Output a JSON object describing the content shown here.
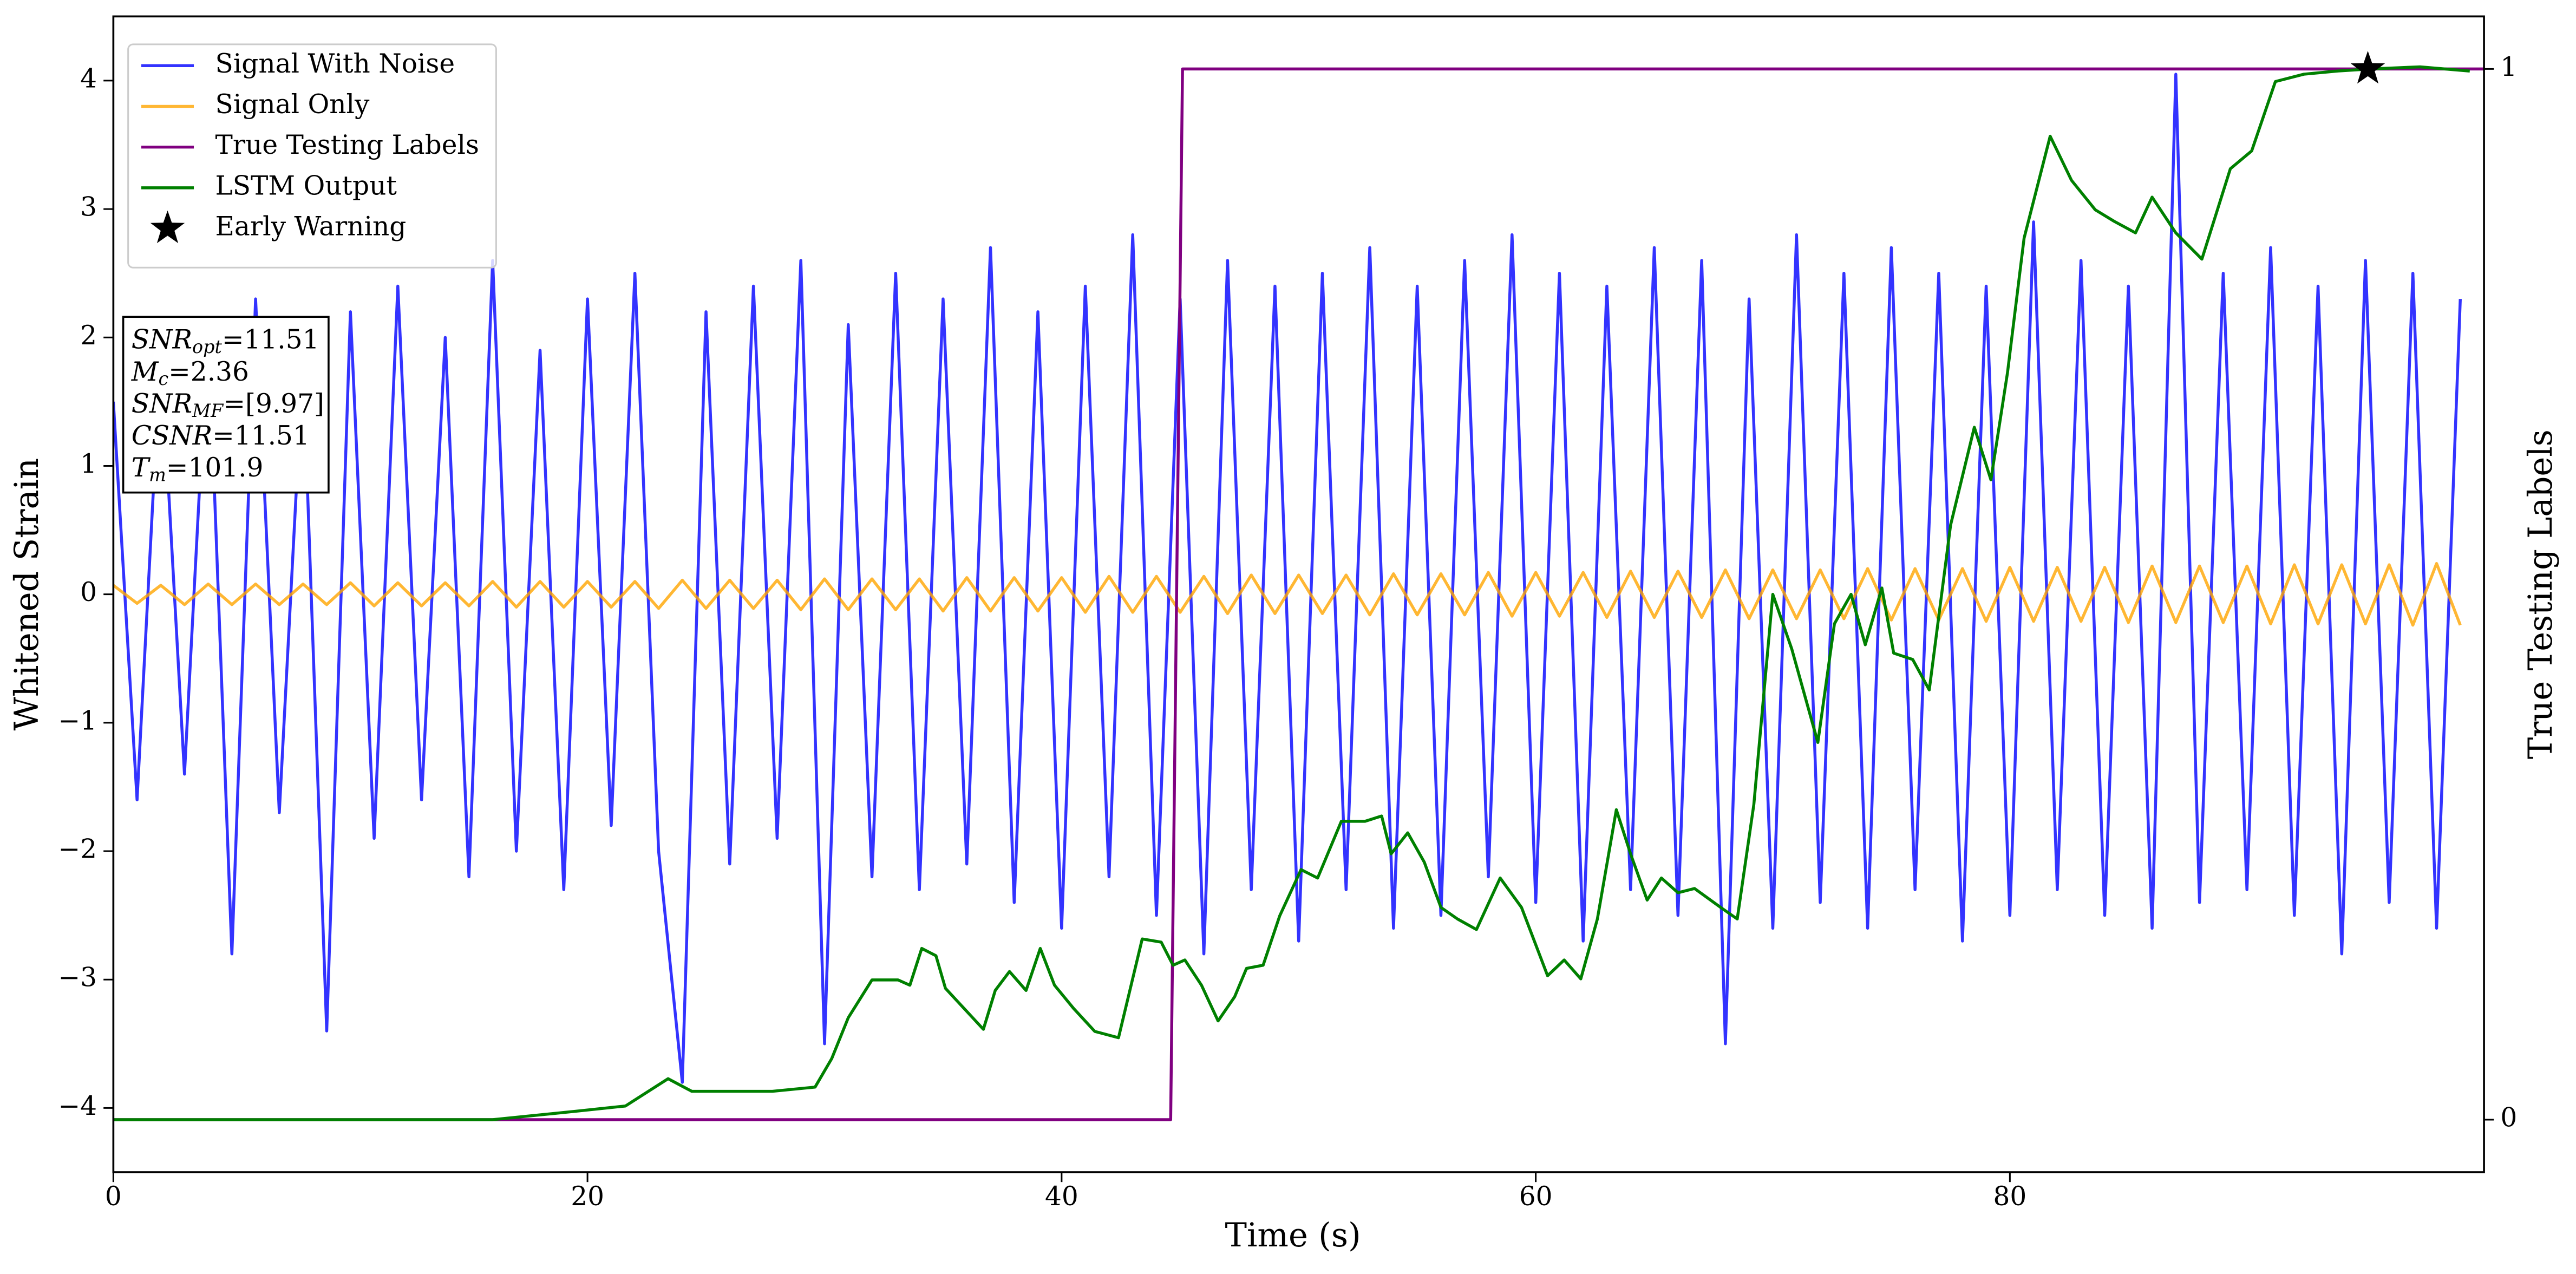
{
  "chart_data": {
    "type": "line",
    "x_label": "Time (s)",
    "y_label": "Whitened Strain",
    "y2_label": "True Testing Labels",
    "xlim": [
      0,
      100
    ],
    "xticks": [
      0,
      20,
      40,
      60,
      80
    ],
    "ylim": [
      -4.5,
      4.5
    ],
    "yticks": [
      {
        "value": -4,
        "label": "−4"
      },
      {
        "value": -3,
        "label": "−3"
      },
      {
        "value": -2,
        "label": "−2"
      },
      {
        "value": -1,
        "label": "−1"
      },
      0,
      1,
      2,
      3,
      4
    ],
    "y2lim": [
      -0.05,
      1.05
    ],
    "y2ticks": [
      0,
      1
    ],
    "legend": "upper left",
    "series": [
      {
        "name": "Signal With Noise",
        "type": "line",
        "color": "#0000ff",
        "alpha": 0.8,
        "x": [
          0,
          1,
          2,
          3,
          4,
          5,
          6,
          7,
          8,
          9,
          10,
          11,
          12,
          13,
          14,
          15,
          16,
          17,
          18,
          19,
          20,
          21,
          22,
          23,
          24,
          25,
          26,
          27,
          28,
          29,
          30,
          31,
          32,
          33,
          34,
          35,
          36,
          37,
          38,
          39,
          40,
          41,
          42,
          43,
          44,
          45,
          46,
          47,
          48,
          49,
          50,
          51,
          52,
          53,
          54,
          55,
          56,
          57,
          58,
          59,
          60,
          61,
          62,
          63,
          64,
          65,
          66,
          67,
          68,
          69,
          70,
          71,
          72,
          73,
          74,
          75,
          76,
          77,
          78,
          79,
          80,
          81,
          82,
          83,
          84,
          85,
          86,
          87,
          88,
          89,
          90,
          91,
          92,
          93,
          94,
          95,
          96,
          97,
          98,
          99
        ],
        "values": [
          1.5,
          -1.6,
          1.9,
          -1.4,
          2.1,
          -2.8,
          2.3,
          -1.7,
          1.8,
          -3.4,
          2.2,
          -1.9,
          2.4,
          -1.6,
          2.0,
          -2.2,
          2.6,
          -2.0,
          1.9,
          -2.3,
          2.3,
          -1.8,
          2.5,
          -2.0,
          -3.8,
          2.2,
          -2.1,
          2.4,
          -1.9,
          2.6,
          -3.5,
          2.1,
          -2.2,
          2.5,
          -2.3,
          2.3,
          -2.1,
          2.7,
          -2.4,
          2.2,
          -2.6,
          2.4,
          -2.2,
          2.8,
          -2.5,
          2.3,
          -2.8,
          2.6,
          -2.3,
          2.4,
          -2.7,
          2.5,
          -2.3,
          2.7,
          -2.6,
          2.4,
          -2.5,
          2.6,
          -2.2,
          2.8,
          -2.4,
          2.5,
          -2.7,
          2.4,
          -2.3,
          2.7,
          -2.5,
          2.6,
          -3.5,
          2.3,
          -2.6,
          2.8,
          -2.4,
          2.5,
          -2.6,
          2.7,
          -2.3,
          2.5,
          -2.7,
          2.4,
          -2.5,
          2.9,
          -2.3,
          2.6,
          -2.5,
          2.4,
          -2.6,
          4.05,
          -2.4,
          2.5,
          -2.3,
          2.7,
          -2.5,
          2.4,
          -2.8,
          2.6,
          -2.4,
          2.5,
          -2.6,
          2.3
        ]
      },
      {
        "name": "Signal Only",
        "type": "line",
        "color": "#ffa500",
        "alpha": 0.8,
        "x": [
          0,
          1,
          2,
          3,
          4,
          5,
          6,
          7,
          8,
          9,
          10,
          11,
          12,
          13,
          14,
          15,
          16,
          17,
          18,
          19,
          20,
          21,
          22,
          23,
          24,
          25,
          26,
          27,
          28,
          29,
          30,
          31,
          32,
          33,
          34,
          35,
          36,
          37,
          38,
          39,
          40,
          41,
          42,
          43,
          44,
          45,
          46,
          47,
          48,
          49,
          50,
          51,
          52,
          53,
          54,
          55,
          56,
          57,
          58,
          59,
          60,
          61,
          62,
          63,
          64,
          65,
          66,
          67,
          68,
          69,
          70,
          71,
          72,
          73,
          74,
          75,
          76,
          77,
          78,
          79,
          80,
          81,
          82,
          83,
          84,
          85,
          86,
          87,
          88,
          89,
          90,
          91,
          92,
          93,
          94,
          95,
          96,
          97,
          98,
          99
        ],
        "values": [
          0.07,
          -0.07,
          0.07,
          -0.08,
          0.08,
          -0.08,
          0.08,
          -0.08,
          0.08,
          -0.08,
          0.09,
          -0.09,
          0.09,
          -0.09,
          0.09,
          -0.09,
          0.1,
          -0.1,
          0.1,
          -0.1,
          0.1,
          -0.1,
          0.1,
          -0.11,
          0.11,
          -0.11,
          0.11,
          -0.11,
          0.11,
          -0.12,
          0.12,
          -0.12,
          0.12,
          -0.12,
          0.12,
          -0.13,
          0.13,
          -0.13,
          0.13,
          -0.13,
          0.13,
          -0.14,
          0.14,
          -0.14,
          0.14,
          -0.14,
          0.14,
          -0.15,
          0.15,
          -0.15,
          0.15,
          -0.15,
          0.15,
          -0.16,
          0.16,
          -0.16,
          0.16,
          -0.16,
          0.17,
          -0.17,
          0.17,
          -0.17,
          0.17,
          -0.18,
          0.18,
          -0.18,
          0.18,
          -0.18,
          0.19,
          -0.19,
          0.19,
          -0.19,
          0.19,
          -0.19,
          0.2,
          -0.2,
          0.2,
          -0.2,
          0.2,
          -0.21,
          0.21,
          -0.21,
          0.21,
          -0.21,
          0.21,
          -0.22,
          0.22,
          -0.22,
          0.22,
          -0.22,
          0.22,
          -0.23,
          0.23,
          -0.23,
          0.23,
          -0.23,
          0.23,
          -0.24,
          0.24,
          -0.24
        ]
      },
      {
        "name": "True Testing Labels",
        "type": "line",
        "color": "#800080",
        "axis": "y2",
        "x": [
          0,
          44.6,
          45.1,
          100
        ],
        "values": [
          0,
          0,
          1,
          1
        ]
      },
      {
        "name": "LSTM Output",
        "type": "line",
        "color": "#008000",
        "axis": "y2",
        "x": [
          0,
          16.0,
          19.5,
          21.6,
          23.4,
          24.4,
          27.8,
          29.6,
          30.3,
          31.0,
          32.0,
          33.1,
          33.6,
          34.1,
          34.7,
          35.1,
          36.7,
          37.2,
          37.8,
          38.5,
          39.1,
          39.7,
          40.5,
          41.4,
          42.4,
          43.4,
          44.2,
          44.7,
          45.2,
          45.9,
          46.6,
          47.3,
          47.8,
          48.5,
          49.2,
          50.1,
          50.8,
          51.8,
          52.8,
          53.5,
          53.9,
          54.6,
          55.3,
          56.0,
          56.7,
          57.5,
          58.5,
          59.4,
          60.5,
          61.2,
          61.9,
          62.6,
          63.4,
          64.0,
          64.7,
          65.3,
          66.0,
          66.7,
          67.8,
          68.5,
          69.2,
          70.0,
          70.8,
          71.9,
          72.6,
          73.3,
          73.9,
          74.6,
          75.1,
          75.9,
          76.6,
          77.5,
          78.5,
          79.2,
          79.9,
          80.6,
          81.7,
          82.6,
          83.6,
          84.4,
          85.3,
          86.0,
          87.0,
          88.1,
          89.3,
          90.2,
          91.2,
          92.4,
          93.8,
          95.2,
          97.3,
          99.4
        ],
        "values": [
          0,
          0,
          0.008,
          0.013,
          0.039,
          0.027,
          0.027,
          0.031,
          0.058,
          0.097,
          0.133,
          0.133,
          0.128,
          0.163,
          0.156,
          0.125,
          0.086,
          0.123,
          0.141,
          0.123,
          0.163,
          0.128,
          0.106,
          0.084,
          0.078,
          0.172,
          0.169,
          0.147,
          0.152,
          0.128,
          0.094,
          0.117,
          0.144,
          0.147,
          0.194,
          0.238,
          0.23,
          0.284,
          0.284,
          0.289,
          0.253,
          0.273,
          0.245,
          0.202,
          0.191,
          0.181,
          0.23,
          0.202,
          0.137,
          0.152,
          0.134,
          0.191,
          0.295,
          0.253,
          0.209,
          0.23,
          0.216,
          0.22,
          0.202,
          0.191,
          0.3,
          0.5,
          0.448,
          0.359,
          0.472,
          0.5,
          0.452,
          0.506,
          0.444,
          0.438,
          0.409,
          0.566,
          0.659,
          0.609,
          0.711,
          0.839,
          0.936,
          0.894,
          0.866,
          0.855,
          0.844,
          0.878,
          0.844,
          0.819,
          0.905,
          0.922,
          0.988,
          0.995,
          0.998,
          1.0,
          1.002,
          0.998
        ]
      },
      {
        "name": "Early Warning",
        "type": "scatter",
        "marker": "star",
        "color": "#000000",
        "axis": "y2",
        "x": [
          95.1
        ],
        "values": [
          1.0
        ]
      }
    ],
    "annotation_lines": [
      {
        "var": "SNR",
        "sub": "opt",
        "text": "=11.51"
      },
      {
        "var": "M",
        "sub": "c",
        "text": "=2.36"
      },
      {
        "var": "SNR",
        "sub": "MF",
        "text": "=[9.97]"
      },
      {
        "var": "CSNR",
        "text": "=11.51"
      },
      {
        "var": "T",
        "sub": "m",
        "text": "=101.9"
      }
    ]
  }
}
